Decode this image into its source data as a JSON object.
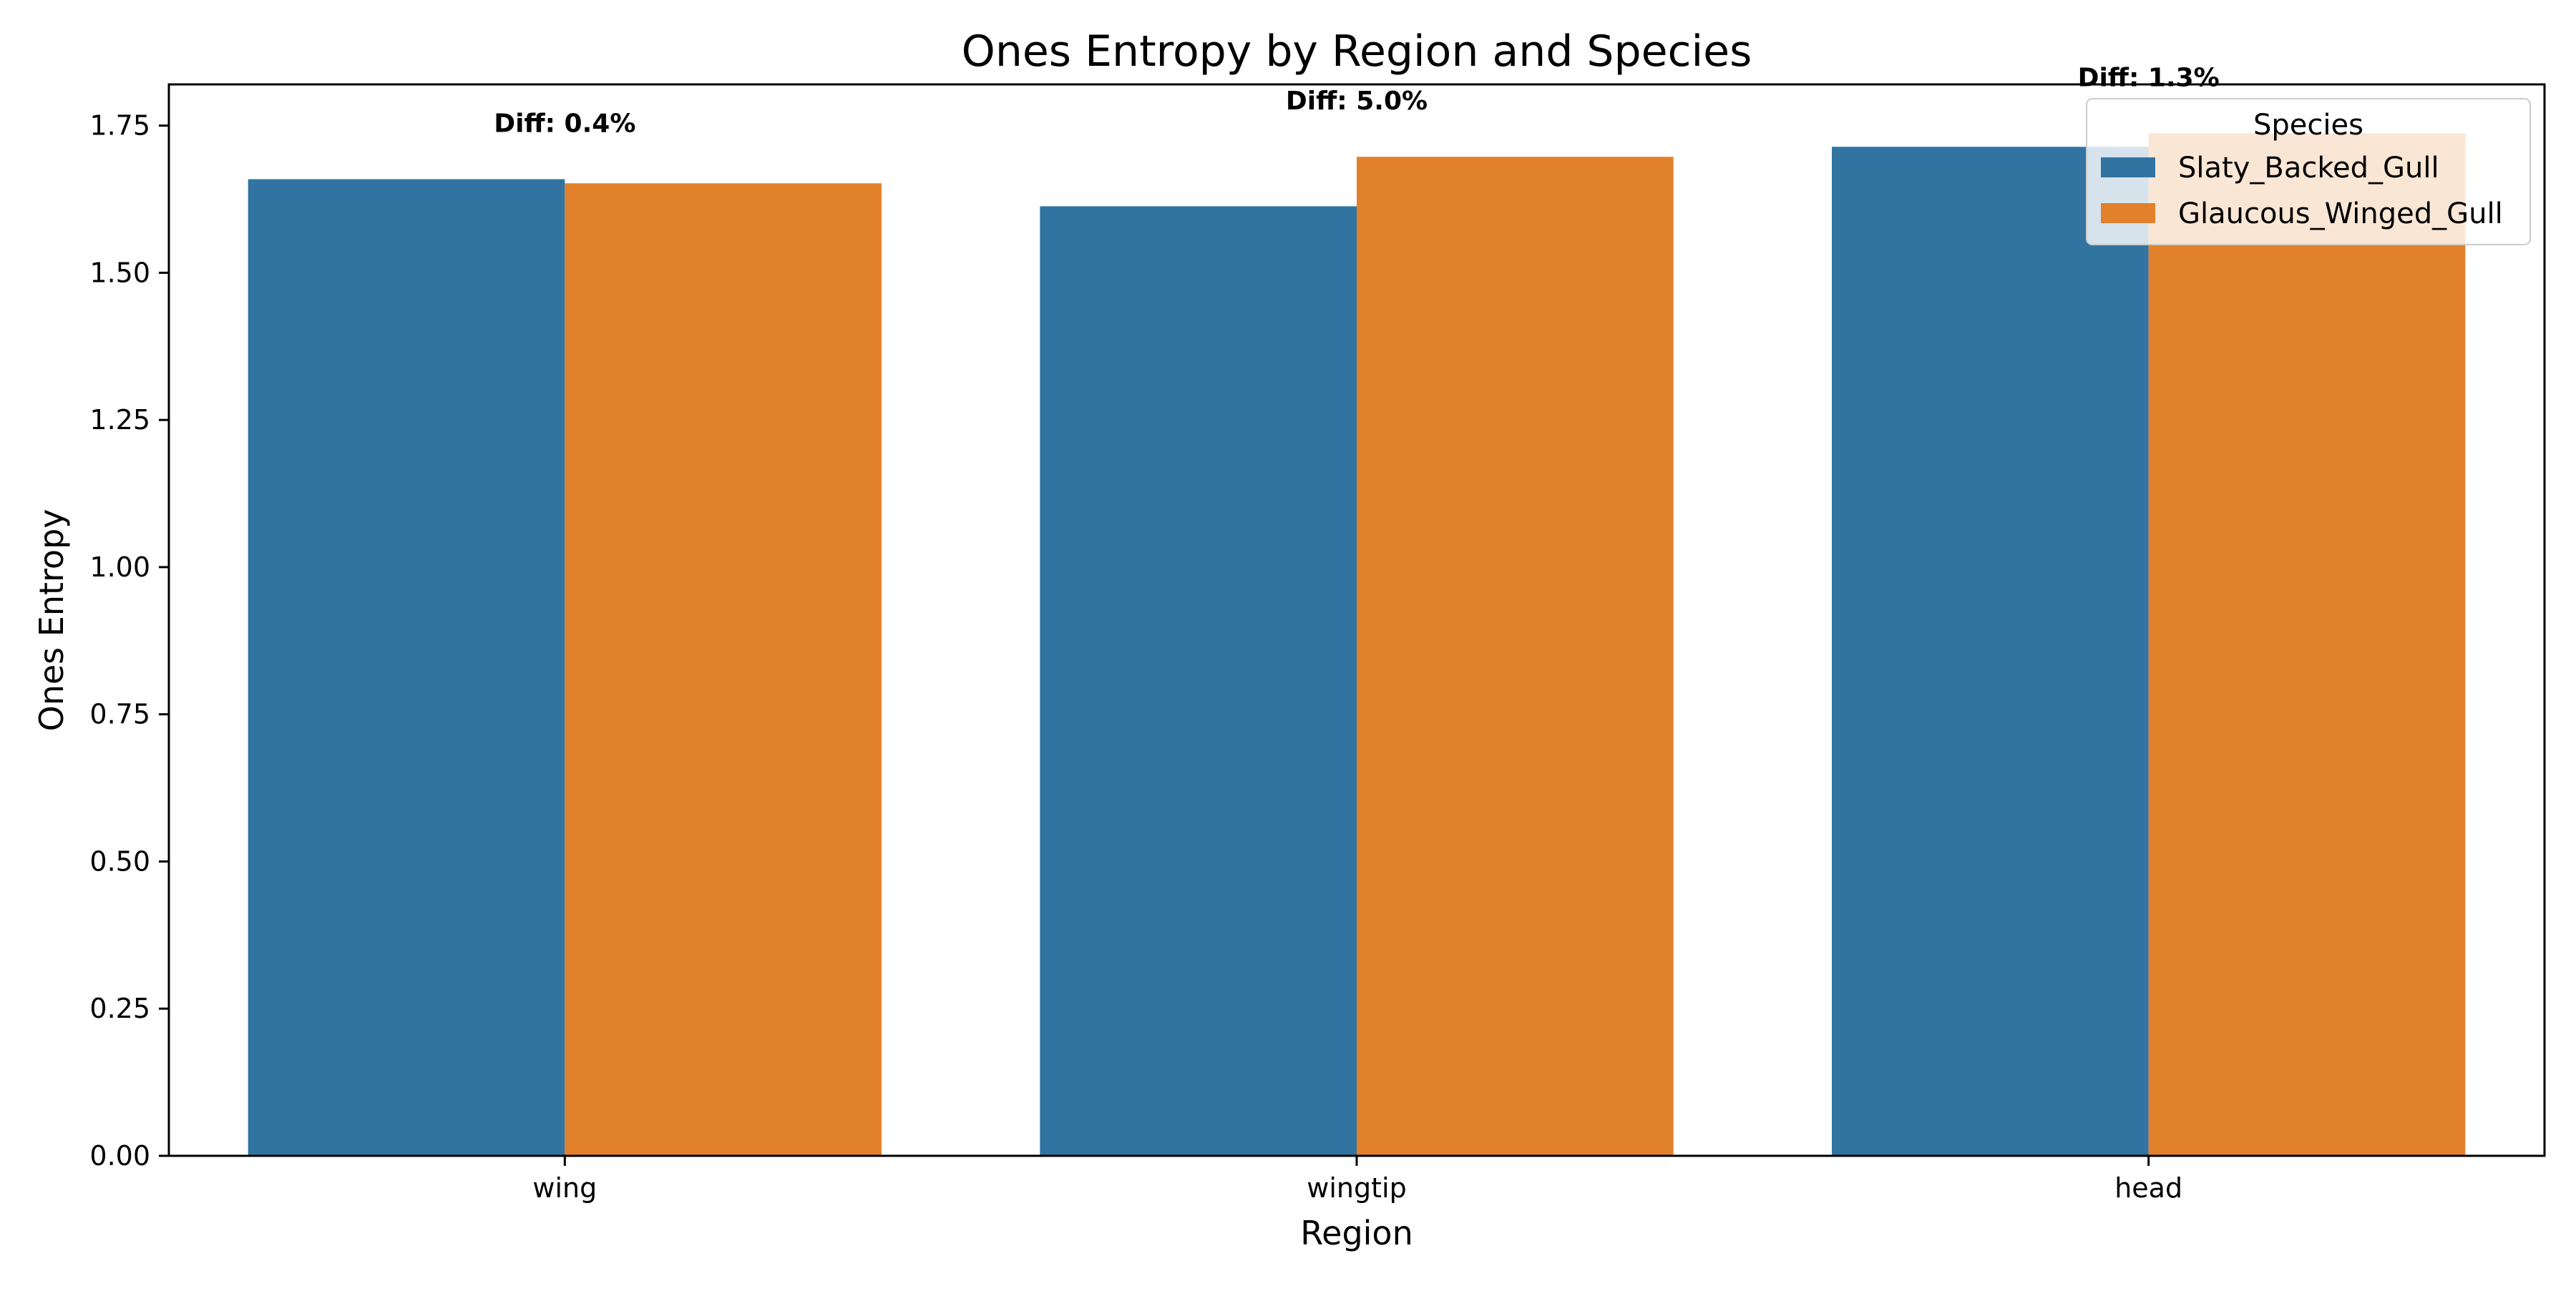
{
  "chart_data": {
    "type": "bar",
    "title": "Ones Entropy by Region and Species",
    "xlabel": "Region",
    "ylabel": "Ones Entropy",
    "categories": [
      "wing",
      "wingtip",
      "head"
    ],
    "series": [
      {
        "name": "Slaty_Backed_Gull",
        "color": "#3274a1",
        "values": [
          1.659,
          1.613,
          1.714
        ]
      },
      {
        "name": "Glaucous_Winged_Gull",
        "color": "#e1812c",
        "values": [
          1.652,
          1.697,
          1.737
        ]
      }
    ],
    "annotations": [
      "Diff: 0.4%",
      "Diff: 5.0%",
      "Diff: 1.3%"
    ],
    "ylim": [
      0,
      1.82
    ],
    "yticks": [
      0.0,
      0.25,
      0.5,
      0.75,
      1.0,
      1.25,
      1.5,
      1.75
    ],
    "ytick_labels": [
      "0.00",
      "0.25",
      "0.50",
      "0.75",
      "1.00",
      "1.25",
      "1.50",
      "1.75"
    ],
    "legend": {
      "title": "Species",
      "placement": "top-right"
    },
    "grid": false
  }
}
